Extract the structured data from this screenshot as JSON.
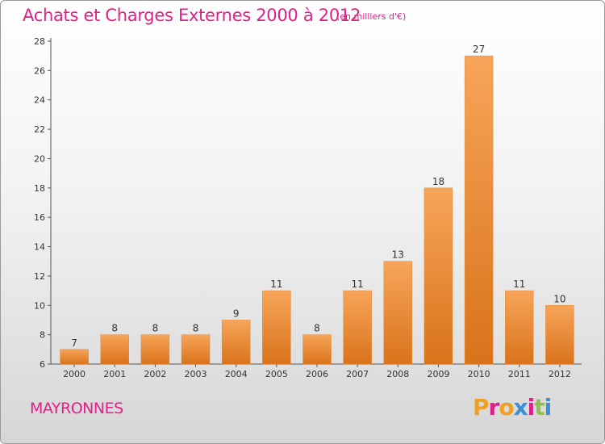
{
  "header": {
    "title": "Achats et Charges Externes 2000 à 2012",
    "unit": "(en milliers d'€)"
  },
  "footer": {
    "commune": "MAYRONNES",
    "logo": "Proxiti",
    "logo_colors": [
      "#f0a020",
      "#e0208a",
      "#f0a020",
      "#3b8fd6",
      "#e0208a",
      "#8bc34a",
      "#3b8fd6"
    ]
  },
  "colors": {
    "text_accent": "#e0208a",
    "bar_light": "#f7a55a",
    "bar_dark": "#d9731a",
    "axis": "#555555"
  },
  "chart_data": {
    "type": "bar",
    "title": "Achats et Charges Externes 2000 à 2012",
    "subtitle": "(en milliers d'€)",
    "xlabel": "",
    "ylabel": "",
    "categories": [
      "2000",
      "2001",
      "2002",
      "2003",
      "2004",
      "2005",
      "2006",
      "2007",
      "2008",
      "2009",
      "2010",
      "2011",
      "2012"
    ],
    "values": [
      7,
      8,
      8,
      8,
      9,
      11,
      8,
      11,
      13,
      18,
      27,
      11,
      10
    ],
    "ylim": [
      6,
      28
    ],
    "yticks": [
      6,
      8,
      10,
      12,
      14,
      16,
      18,
      20,
      22,
      24,
      26,
      28
    ],
    "grid": false,
    "legend": "none"
  }
}
